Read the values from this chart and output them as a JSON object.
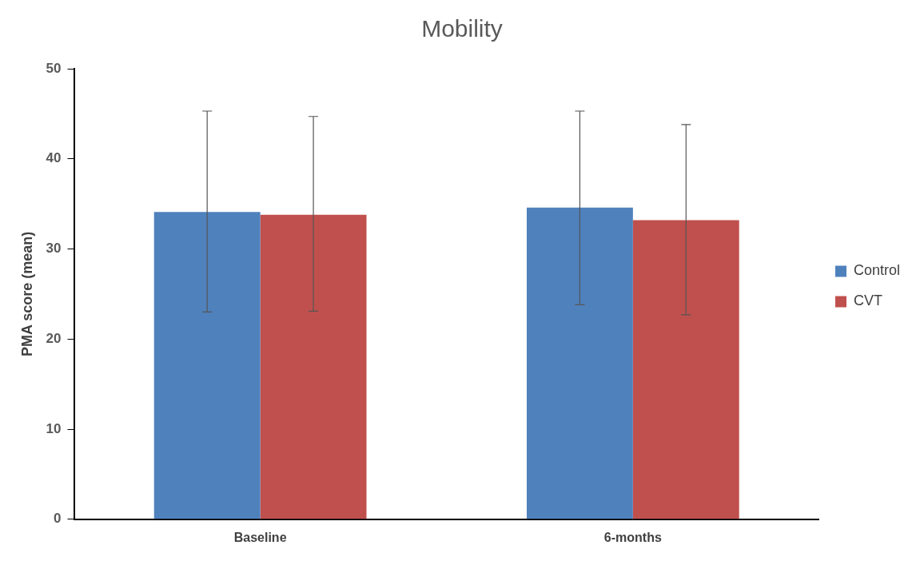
{
  "chart_data": {
    "type": "bar",
    "title": "Mobility",
    "ylabel": "PMA score (mean)",
    "categories": [
      "Baseline",
      "6-months"
    ],
    "series": [
      {
        "name": "Control",
        "color": "#4f81bd",
        "values": [
          34.1,
          34.6
        ],
        "errors": [
          [
            23.0,
            45.3
          ],
          [
            23.8,
            45.3
          ]
        ]
      },
      {
        "name": "CVT",
        "color": "#c0504d",
        "values": [
          33.8,
          33.2
        ],
        "errors": [
          [
            23.1,
            44.7
          ],
          [
            22.7,
            43.8
          ]
        ]
      }
    ],
    "ylim": [
      0,
      50
    ],
    "yticks": [
      0,
      10,
      20,
      30,
      40,
      50
    ],
    "grid": false,
    "legend": "right"
  }
}
